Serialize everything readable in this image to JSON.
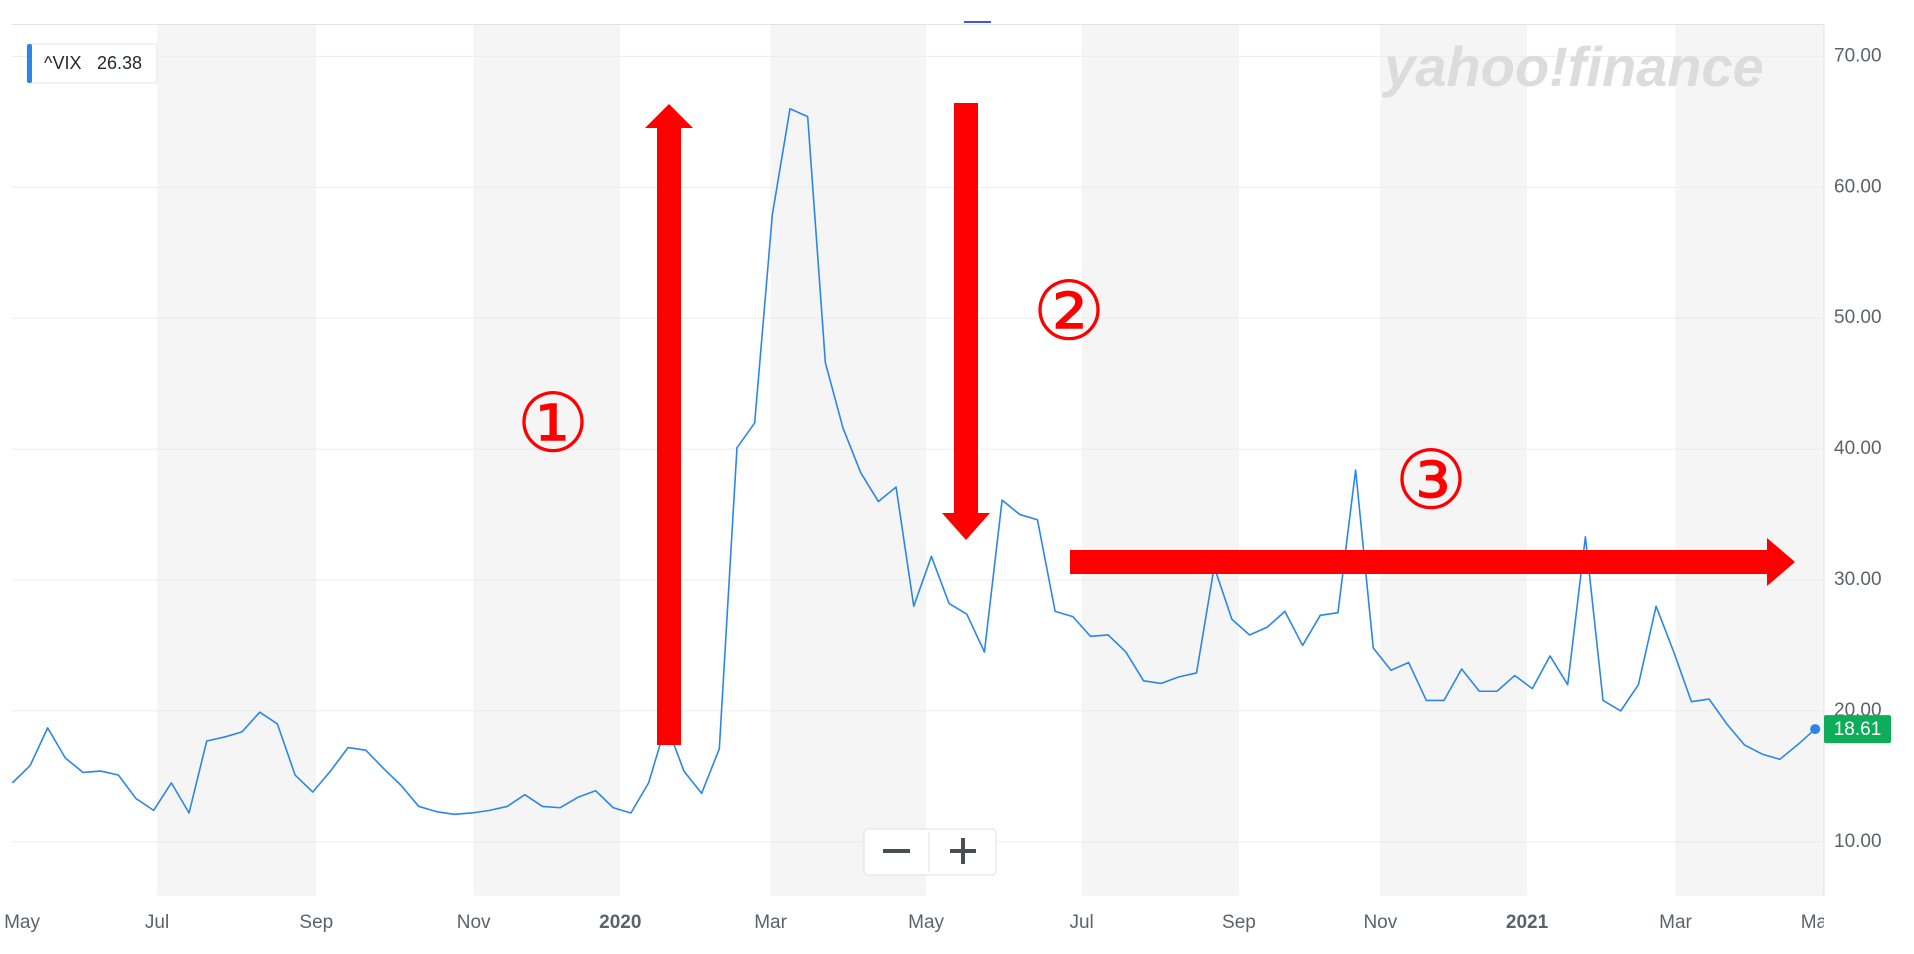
{
  "chart_data": {
    "type": "line",
    "watermark": "yahoo!finance",
    "legend_value": 26.38,
    "annotations": [
      "①",
      "②",
      "③"
    ],
    "series": [
      {
        "name": "^VIX",
        "color": "#2a87e8",
        "values": [
          14.5,
          15.8,
          18.7,
          16.4,
          15.3,
          15.4,
          15.1,
          13.3,
          12.4,
          14.5,
          12.2,
          17.7,
          18.0,
          18.4,
          19.9,
          19.0,
          15.1,
          13.8,
          15.4,
          17.2,
          17.0,
          15.6,
          14.3,
          12.7,
          12.3,
          12.1,
          12.2,
          12.4,
          12.7,
          13.6,
          12.7,
          12.6,
          13.4,
          13.9,
          12.6,
          12.2,
          14.5,
          19.0,
          15.4,
          13.7,
          17.1,
          40.1,
          42.0,
          57.9,
          66.0,
          65.4,
          46.6,
          41.6,
          38.2,
          36.0,
          37.1,
          28.0,
          31.8,
          28.2,
          27.4,
          24.5,
          36.1,
          35.0,
          34.6,
          27.6,
          27.2,
          25.7,
          25.8,
          24.5,
          22.3,
          22.1,
          22.6,
          22.9,
          31.0,
          27.0,
          25.8,
          26.4,
          27.6,
          25.0,
          27.3,
          27.5,
          38.4,
          24.8,
          23.1,
          23.7,
          20.8,
          20.8,
          23.2,
          21.5,
          21.5,
          22.7,
          21.7,
          24.2,
          22.0,
          33.3,
          20.8,
          20.0,
          22.0,
          28.0,
          24.5,
          20.7,
          20.9,
          19.0,
          17.4,
          16.7,
          16.3,
          17.4,
          18.61
        ]
      }
    ],
    "xlim": [
      0,
      102.5
    ],
    "xticks": [
      {
        "value": 0.55,
        "label": "May"
      },
      {
        "value": 8.19,
        "label": "Jul"
      },
      {
        "value": 17.2,
        "label": "Sep"
      },
      {
        "value": 26.1,
        "label": "Nov"
      },
      {
        "value": 34.4,
        "label": "2020"
      },
      {
        "value": 42.9,
        "label": "Mar"
      },
      {
        "value": 51.7,
        "label": "May"
      },
      {
        "value": 60.5,
        "label": "Jul"
      },
      {
        "value": 69.4,
        "label": "Sep"
      },
      {
        "value": 77.4,
        "label": "Nov"
      },
      {
        "value": 85.7,
        "label": "2021"
      },
      {
        "value": 94.1,
        "label": "Mar"
      },
      {
        "value": 102.2,
        "label": "May"
      }
    ],
    "ylim": [
      5.88,
      72.44
    ],
    "yticks": [
      {
        "value": 10,
        "label": "10.00"
      },
      {
        "value": 20,
        "label": "20.00"
      },
      {
        "value": 30,
        "label": "30.00"
      },
      {
        "value": 40,
        "label": "40.00"
      },
      {
        "value": 50,
        "label": "50.00"
      },
      {
        "value": 60,
        "label": "60.00"
      },
      {
        "value": 70,
        "label": "70.00"
      }
    ],
    "grid": true,
    "badge_color": "#0ead59"
  }
}
